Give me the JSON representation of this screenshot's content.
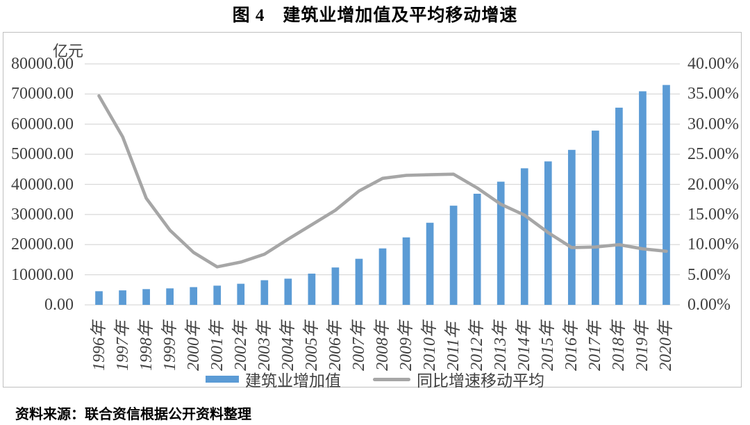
{
  "title": "图 4　建筑业增加值及平均移动增速",
  "source_note": "资料来源：联合资信根据公开资料整理",
  "chart_data": {
    "type": "bar",
    "subtype": "bar+line combo, dual axis",
    "categories": [
      "1996年",
      "1997年",
      "1998年",
      "1999年",
      "2000年",
      "2001年",
      "2002年",
      "2003年",
      "2004年",
      "2005年",
      "2006年",
      "2007年",
      "2008年",
      "2009年",
      "2010年",
      "2011年",
      "2012年",
      "2013年",
      "2014年",
      "2015年",
      "2016年",
      "2017年",
      "2018年",
      "2019年",
      "2020年"
    ],
    "series": [
      {
        "name": "建筑业增加值",
        "type": "bar",
        "axis": "left",
        "unit": "亿元",
        "color": "#5B9BD5",
        "values": [
          4530,
          4811,
          5231,
          5471,
          5888,
          6375,
          7005,
          8181,
          8694,
          10367,
          12409,
          15296,
          18743,
          22399,
          27261,
          32926,
          36896,
          40897,
          45337,
          47628,
          51459,
          57846,
          65463,
          70904,
          72996
        ]
      },
      {
        "name": "同比增速移动平均",
        "type": "line",
        "axis": "right",
        "unit": "%",
        "color": "#A6A6A6",
        "values": [
          34.7,
          27.9,
          17.7,
          12.4,
          8.7,
          6.3,
          7.1,
          8.4,
          10.9,
          13.3,
          15.7,
          18.9,
          21.0,
          21.5,
          21.6,
          21.7,
          19.4,
          16.7,
          14.9,
          12.0,
          9.5,
          9.6,
          10.0,
          9.3,
          8.9
        ]
      }
    ],
    "left_axis": {
      "title": "亿元",
      "min": 0,
      "max": 80000,
      "step": 10000,
      "tick_labels": [
        "80000.00",
        "70000.00",
        "60000.00",
        "50000.00",
        "40000.00",
        "30000.00",
        "20000.00",
        "10000.00",
        "0.00"
      ]
    },
    "right_axis": {
      "min": 0,
      "max": 40,
      "step": 5,
      "tick_labels": [
        "40.00%",
        "35.00%",
        "30.00%",
        "25.00%",
        "20.00%",
        "15.00%",
        "10.00%",
        "5.00%",
        "0.00%"
      ]
    },
    "grid": true,
    "legend_position": "bottom",
    "colors": {
      "gridline": "#D9D9D9",
      "axis_text": "#404040",
      "box_border": "#BFBFBF"
    }
  }
}
